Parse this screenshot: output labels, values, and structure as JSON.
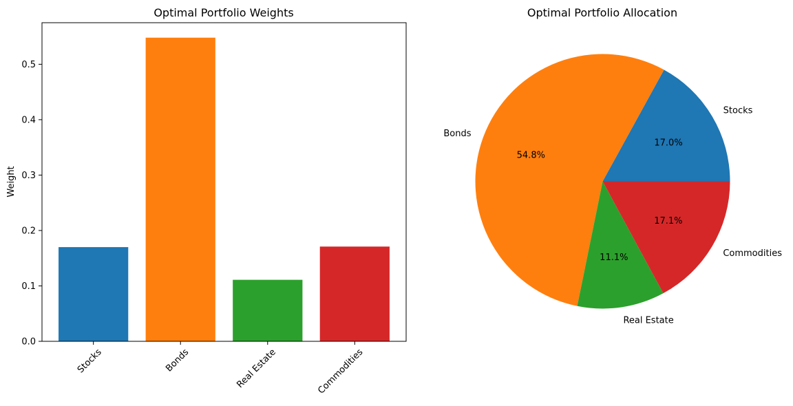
{
  "colors": {
    "stocks": "#1f77b4",
    "bonds": "#ff7f0e",
    "real_estate": "#2ca02c",
    "commodities": "#d62728"
  },
  "chart_data": [
    {
      "type": "bar",
      "title": "Optimal Portfolio Weights",
      "xlabel": "",
      "ylabel": "Weight",
      "categories": [
        "Stocks",
        "Bonds",
        "Real Estate",
        "Commodities"
      ],
      "values": [
        0.17,
        0.548,
        0.111,
        0.171
      ],
      "ylim": [
        0,
        0.575
      ],
      "yticks": [
        "0.0",
        "0.1",
        "0.2",
        "0.3",
        "0.4",
        "0.5"
      ],
      "xtick_rotation_deg": 45,
      "colors": [
        "#1f77b4",
        "#ff7f0e",
        "#2ca02c",
        "#d62728"
      ],
      "grid": false
    },
    {
      "type": "pie",
      "title": "Optimal Portfolio Allocation",
      "labels": [
        "Stocks",
        "Bonds",
        "Real Estate",
        "Commodities"
      ],
      "values": [
        17.0,
        54.8,
        11.1,
        17.1
      ],
      "value_labels": [
        "17.0%",
        "54.8%",
        "11.1%",
        "17.1%"
      ],
      "colors": [
        "#1f77b4",
        "#ff7f0e",
        "#2ca02c",
        "#d62728"
      ],
      "start_angle_deg": 0,
      "direction": "counterclockwise"
    }
  ]
}
